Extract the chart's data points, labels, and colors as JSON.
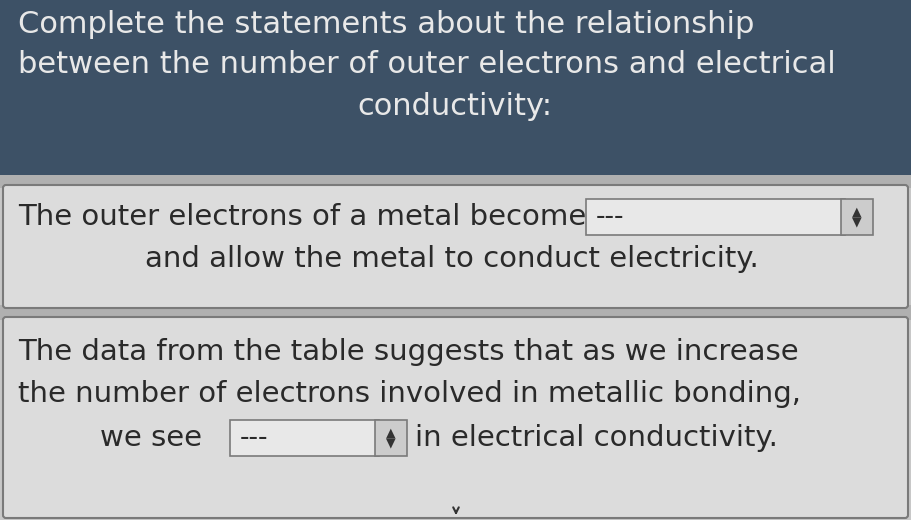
{
  "title_line1": "Complete the statements about the relationship",
  "title_line2": "between the number of outer electrons and electrical",
  "title_line3": "conductivity:",
  "title_bg_color": "#3d5166",
  "title_text_color": "#e8e8e8",
  "body_bg_color": "#c8c8c8",
  "section_bg_color": "#dcdcdc",
  "section1_text_line1": "The outer electrons of a metal become",
  "section1_text_line2": "and allow the metal to conduct electricity.",
  "section2_text_line1": "The data from the table suggests that as we increase",
  "section2_text_line2": "the number of electrons involved in metallic bonding,",
  "section2_text_line3": "we see",
  "section2_text_line3_end": "in electrical conductivity.",
  "dropdown_text": "---",
  "dropdown_bg": "#e8e8e8",
  "dropdown_border": "#7a7a7a",
  "body_text_color": "#2a2a2a",
  "divider_color": "#7a7a7a",
  "font_size_title": 22,
  "font_size_body": 21
}
